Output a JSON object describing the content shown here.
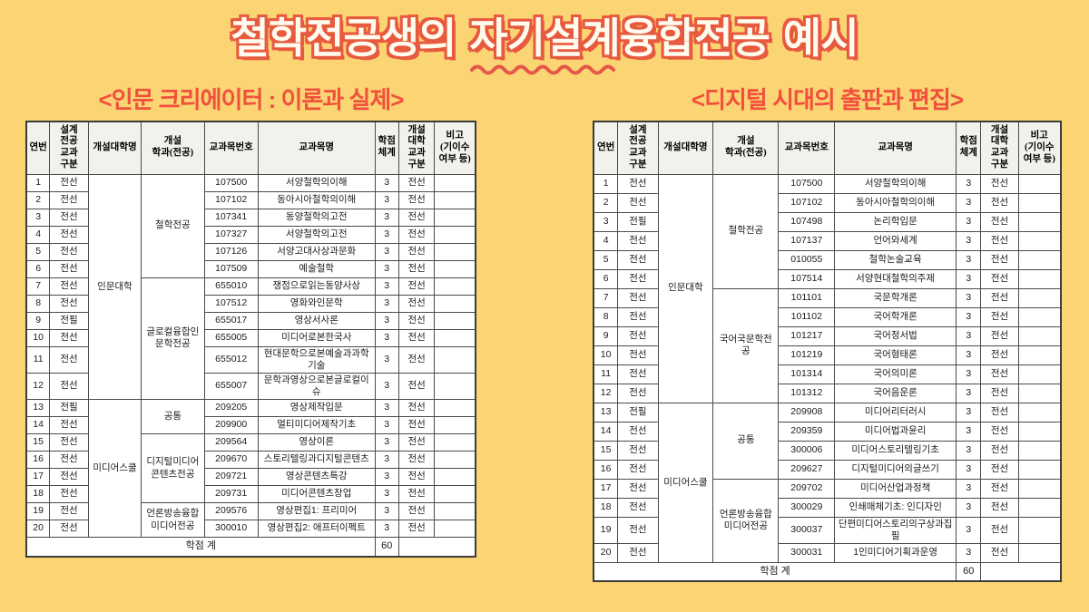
{
  "title": "철학전공생의 자기설계융합전공 예시",
  "colors": {
    "page_background": "#FBD473",
    "accent_red": "#F0503C",
    "title_fill": "#FFFBEE",
    "title_outline": "#E85A3F",
    "header_cell_bg": "#F2F1EB"
  },
  "squiggle_icon": "wavy-underline",
  "tables": [
    {
      "subtitle": "<인문 크리에이터 : 이론과 실제>",
      "headers": [
        "연번",
        "설계\n전공\n교과\n구분",
        "개설대학명",
        "개설\n학과(전공)",
        "교과목번호",
        "교과목명",
        "학점\n체계",
        "개설\n대학\n교과\n구분",
        "비고\n(기이수\n여부 등)"
      ],
      "college_groups": [
        {
          "label": "인문대학",
          "span": 12
        },
        {
          "label": "미디어스쿨",
          "span": 8
        }
      ],
      "dept_groups": [
        {
          "label": "철학전공",
          "span": 6
        },
        {
          "label": "글로컬융합인문학전공",
          "span": 6
        },
        {
          "label": "공통",
          "span": 2
        },
        {
          "label": "디지털미디어콘텐츠전공",
          "span": 4
        },
        {
          "label": "언론방송융합미디어전공",
          "span": 2
        }
      ],
      "rows": [
        [
          "1",
          "전선",
          "107500",
          "서양철학의이해",
          "3",
          "전선",
          ""
        ],
        [
          "2",
          "전선",
          "107102",
          "동아시아철학의이해",
          "3",
          "전선",
          ""
        ],
        [
          "3",
          "전선",
          "107341",
          "동양철학의고전",
          "3",
          "전선",
          ""
        ],
        [
          "4",
          "전선",
          "107327",
          "서양철학의고전",
          "3",
          "전선",
          ""
        ],
        [
          "5",
          "전선",
          "107126",
          "서양고대사상과문화",
          "3",
          "전선",
          ""
        ],
        [
          "6",
          "전선",
          "107509",
          "예술철학",
          "3",
          "전선",
          ""
        ],
        [
          "7",
          "전선",
          "655010",
          "쟁점으로읽는동양사상",
          "3",
          "전선",
          ""
        ],
        [
          "8",
          "전선",
          "107512",
          "영화와인문학",
          "3",
          "전선",
          ""
        ],
        [
          "9",
          "전필",
          "655017",
          "영상서사론",
          "3",
          "전선",
          ""
        ],
        [
          "10",
          "전선",
          "655005",
          "미디어로본한국사",
          "3",
          "전선",
          ""
        ],
        [
          "11",
          "전선",
          "655012",
          "현대문학으로본예술과과학기술",
          "3",
          "전선",
          ""
        ],
        [
          "12",
          "전선",
          "655007",
          "문학과영상으로본글로컬이슈",
          "3",
          "전선",
          ""
        ],
        [
          "13",
          "전필",
          "209205",
          "영상제작입문",
          "3",
          "전선",
          ""
        ],
        [
          "14",
          "전선",
          "209900",
          "멀티미디어제작기초",
          "3",
          "전선",
          ""
        ],
        [
          "15",
          "전선",
          "209564",
          "영상이론",
          "3",
          "전선",
          ""
        ],
        [
          "16",
          "전선",
          "209670",
          "스토리텔링과디지털콘텐츠",
          "3",
          "전선",
          ""
        ],
        [
          "17",
          "전선",
          "209721",
          "영상콘텐츠특강",
          "3",
          "전선",
          ""
        ],
        [
          "18",
          "전선",
          "209731",
          "미디어콘텐츠창업",
          "3",
          "전선",
          ""
        ],
        [
          "19",
          "전선",
          "209576",
          "영상편집1: 프리미어",
          "3",
          "전선",
          ""
        ],
        [
          "20",
          "전선",
          "300010",
          "영상편집2: 애프터이펙트",
          "3",
          "전선",
          ""
        ]
      ],
      "footer": {
        "label": "학점 계",
        "total": "60"
      }
    },
    {
      "subtitle": "<디지털 시대의 출판과 편집>",
      "headers": [
        "연번",
        "설계\n전공\n교과\n구분",
        "개설대학명",
        "개설\n학과(전공)",
        "교과목번호",
        "교과목명",
        "학점\n체계",
        "개설\n대학\n교과\n구분",
        "비고\n(기이수\n여부 등)"
      ],
      "college_groups": [
        {
          "label": "인문대학",
          "span": 12
        },
        {
          "label": "미디어스쿨",
          "span": 8
        }
      ],
      "dept_groups": [
        {
          "label": "철학전공",
          "span": 6
        },
        {
          "label": "국어국문학전공",
          "span": 6
        },
        {
          "label": "공통",
          "span": 4
        },
        {
          "label": "언론방송융합미디어전공",
          "span": 4
        }
      ],
      "rows": [
        [
          "1",
          "전선",
          "107500",
          "서양철학의이해",
          "3",
          "전선",
          ""
        ],
        [
          "2",
          "전선",
          "107102",
          "동아시아철학의이해",
          "3",
          "전선",
          ""
        ],
        [
          "3",
          "전필",
          "107498",
          "논리학입문",
          "3",
          "전선",
          ""
        ],
        [
          "4",
          "전선",
          "107137",
          "언어와세계",
          "3",
          "전선",
          ""
        ],
        [
          "5",
          "전선",
          "010055",
          "철학논술교육",
          "3",
          "전선",
          ""
        ],
        [
          "6",
          "전선",
          "107514",
          "서양현대철학의주제",
          "3",
          "전선",
          ""
        ],
        [
          "7",
          "전선",
          "101101",
          "국문학개론",
          "3",
          "전선",
          ""
        ],
        [
          "8",
          "전선",
          "101102",
          "국어학개론",
          "3",
          "전선",
          ""
        ],
        [
          "9",
          "전선",
          "101217",
          "국어정서법",
          "3",
          "전선",
          ""
        ],
        [
          "10",
          "전선",
          "101219",
          "국어형태론",
          "3",
          "전선",
          ""
        ],
        [
          "11",
          "전선",
          "101314",
          "국어의미론",
          "3",
          "전선",
          ""
        ],
        [
          "12",
          "전선",
          "101312",
          "국어음운론",
          "3",
          "전선",
          ""
        ],
        [
          "13",
          "전필",
          "209908",
          "미디어리터러시",
          "3",
          "전선",
          ""
        ],
        [
          "14",
          "전선",
          "209359",
          "미디어법과윤리",
          "3",
          "전선",
          ""
        ],
        [
          "15",
          "전선",
          "300006",
          "미디어스토리텔링기초",
          "3",
          "전선",
          ""
        ],
        [
          "16",
          "전선",
          "209627",
          "디지털미디어의글쓰기",
          "3",
          "전선",
          ""
        ],
        [
          "17",
          "전선",
          "209702",
          "미디어산업과정책",
          "3",
          "전선",
          ""
        ],
        [
          "18",
          "전선",
          "300029",
          "인쇄매체기초: 인디자인",
          "3",
          "전선",
          ""
        ],
        [
          "19",
          "전선",
          "300037",
          "단편미디어스토리의구상과집필",
          "3",
          "전선",
          ""
        ],
        [
          "20",
          "전선",
          "300031",
          "1인미디어기획과운영",
          "3",
          "전선",
          ""
        ]
      ],
      "footer": {
        "label": "학점 계",
        "total": "60"
      }
    }
  ]
}
